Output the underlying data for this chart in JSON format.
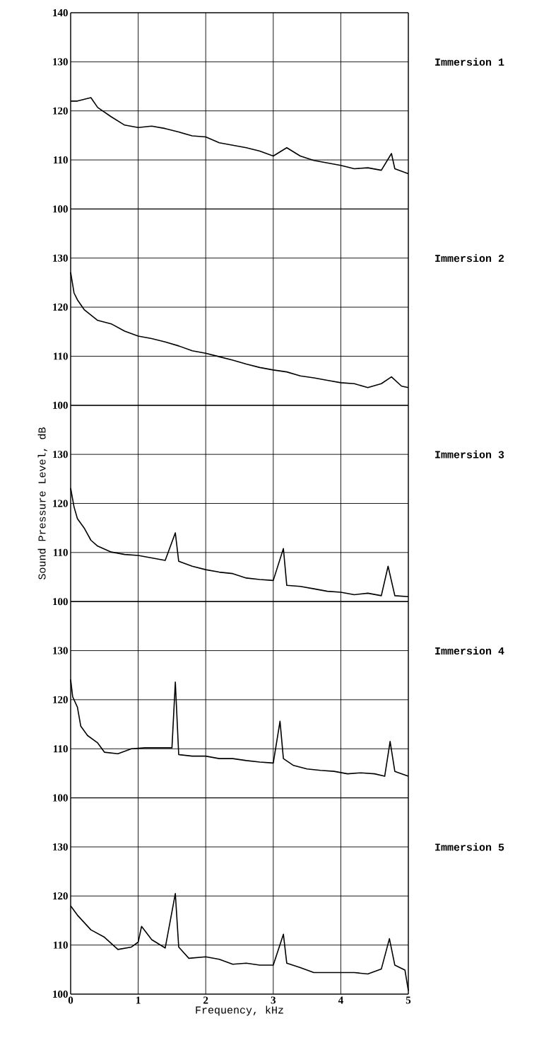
{
  "chart_data": [
    {
      "type": "line",
      "xlim": [
        0,
        5
      ],
      "ylim": [
        100,
        140
      ],
      "xticks": [
        0,
        1,
        2,
        3,
        4,
        5
      ],
      "yticks": [
        100,
        110,
        120,
        130,
        140
      ],
      "grid": true,
      "tick_labels": "y",
      "x": [
        0,
        0.1,
        0.3,
        0.4,
        0.6,
        0.8,
        1.0,
        1.2,
        1.4,
        1.6,
        1.8,
        2.0,
        2.2,
        2.4,
        2.6,
        2.8,
        3.0,
        3.2,
        3.4,
        3.6,
        3.8,
        4.0,
        4.2,
        4.4,
        4.6,
        4.75,
        4.8,
        5.0
      ],
      "series": [
        {
          "name": "Immersion 1",
          "color": "#000000",
          "values": [
            122,
            122,
            122.7,
            120.7,
            118.8,
            117.1,
            116.6,
            116.9,
            116.4,
            115.7,
            114.9,
            114.7,
            113.5,
            113,
            112.5,
            111.8,
            110.8,
            112.5,
            110.8,
            109.9,
            109.4,
            108.9,
            108.2,
            108.4,
            107.9,
            111.3,
            108.2,
            107.2
          ]
        }
      ]
    },
    {
      "type": "line",
      "xlim": [
        0,
        5
      ],
      "ylim": [
        100,
        140
      ],
      "xticks": [
        0,
        1,
        2,
        3,
        4,
        5
      ],
      "yticks": [
        100,
        110,
        120,
        130
      ],
      "grid": true,
      "tick_labels": "y",
      "x": [
        0,
        0.05,
        0.1,
        0.2,
        0.4,
        0.6,
        0.8,
        1.0,
        1.2,
        1.4,
        1.6,
        1.8,
        2.0,
        2.2,
        2.4,
        2.6,
        2.8,
        3.0,
        3.2,
        3.4,
        3.6,
        3.8,
        4.0,
        4.2,
        4.4,
        4.6,
        4.75,
        4.9,
        5.0
      ],
      "series": [
        {
          "name": "Immersion 2",
          "color": "#000000",
          "values": [
            127.1,
            122.9,
            121.5,
            119.5,
            117.3,
            116.6,
            115.1,
            114.1,
            113.6,
            112.9,
            112.1,
            111.1,
            110.6,
            109.9,
            109.2,
            108.4,
            107.7,
            107.2,
            106.8,
            106,
            105.6,
            105.1,
            104.6,
            104.4,
            103.6,
            104.4,
            105.8,
            103.9,
            103.6
          ]
        }
      ]
    },
    {
      "type": "line",
      "ylabel": "Sound Pressure Level, dB",
      "xlim": [
        0,
        5
      ],
      "ylim": [
        100,
        140
      ],
      "xticks": [
        0,
        1,
        2,
        3,
        4,
        5
      ],
      "yticks": [
        100,
        110,
        120,
        130
      ],
      "grid": true,
      "tick_labels": "y",
      "x": [
        0,
        0.05,
        0.1,
        0.2,
        0.3,
        0.4,
        0.6,
        0.8,
        1.0,
        1.2,
        1.4,
        1.55,
        1.6,
        1.8,
        2.0,
        2.2,
        2.4,
        2.6,
        2.8,
        3.0,
        3.15,
        3.2,
        3.4,
        3.6,
        3.8,
        4.0,
        4.2,
        4.4,
        4.6,
        4.7,
        4.8,
        5.0
      ],
      "series": [
        {
          "name": "Immersion 3",
          "color": "#000000",
          "values": [
            123.1,
            119.3,
            116.9,
            115,
            112.5,
            111.3,
            110.1,
            109.6,
            109.4,
            108.9,
            108.4,
            114,
            108.2,
            107.2,
            106.5,
            106,
            105.7,
            104.8,
            104.5,
            104.3,
            110.8,
            103.3,
            103.1,
            102.6,
            102.1,
            101.9,
            101.4,
            101.7,
            101.2,
            107.2,
            101.2,
            101
          ]
        }
      ]
    },
    {
      "type": "line",
      "xlim": [
        0,
        5
      ],
      "ylim": [
        100,
        140
      ],
      "xticks": [
        0,
        1,
        2,
        3,
        4,
        5
      ],
      "yticks": [
        100,
        110,
        120,
        130
      ],
      "grid": true,
      "tick_labels": "y",
      "x": [
        0,
        0.03,
        0.1,
        0.15,
        0.25,
        0.4,
        0.5,
        0.7,
        0.9,
        1.1,
        1.3,
        1.5,
        1.55,
        1.6,
        1.8,
        2.0,
        2.2,
        2.4,
        2.6,
        2.8,
        3.0,
        3.1,
        3.15,
        3.3,
        3.5,
        3.7,
        3.9,
        4.1,
        4.3,
        4.5,
        4.65,
        4.73,
        4.8,
        5.0
      ],
      "series": [
        {
          "name": "Immersion 4",
          "color": "#000000",
          "values": [
            124.1,
            120.6,
            118.5,
            114.6,
            112.7,
            111.2,
            109.3,
            109,
            110,
            110.2,
            110.2,
            110.2,
            123.6,
            108.8,
            108.5,
            108.5,
            108,
            108,
            107.6,
            107.3,
            107.1,
            115.6,
            108,
            106.6,
            105.9,
            105.6,
            105.4,
            104.9,
            105.1,
            104.9,
            104.4,
            111.5,
            105.4,
            104.4
          ]
        }
      ]
    },
    {
      "type": "line",
      "xlabel": "Frequency, kHz",
      "xlim": [
        0,
        5
      ],
      "ylim": [
        100,
        140
      ],
      "xticks": [
        0,
        1,
        2,
        3,
        4,
        5
      ],
      "yticks": [
        100,
        110,
        120,
        130
      ],
      "grid": true,
      "x": [
        0,
        0.1,
        0.3,
        0.5,
        0.7,
        0.9,
        1.0,
        1.05,
        1.2,
        1.4,
        1.55,
        1.6,
        1.75,
        2.0,
        2.2,
        2.4,
        2.6,
        2.8,
        3.0,
        3.15,
        3.2,
        3.4,
        3.6,
        3.8,
        4.0,
        4.2,
        4.4,
        4.6,
        4.72,
        4.8,
        4.95,
        5.0
      ],
      "series": [
        {
          "name": "Immersion 5",
          "color": "#000000",
          "values": [
            118,
            116.1,
            113.1,
            111.6,
            109.1,
            109.6,
            110.6,
            113.8,
            111.1,
            109.4,
            120.5,
            109.6,
            107.3,
            107.6,
            107.1,
            106.1,
            106.3,
            105.9,
            105.9,
            112.2,
            106.3,
            105.4,
            104.4,
            104.4,
            104.4,
            104.4,
            104.1,
            105.1,
            111.3,
            105.9,
            104.9,
            100.7
          ]
        }
      ]
    }
  ]
}
